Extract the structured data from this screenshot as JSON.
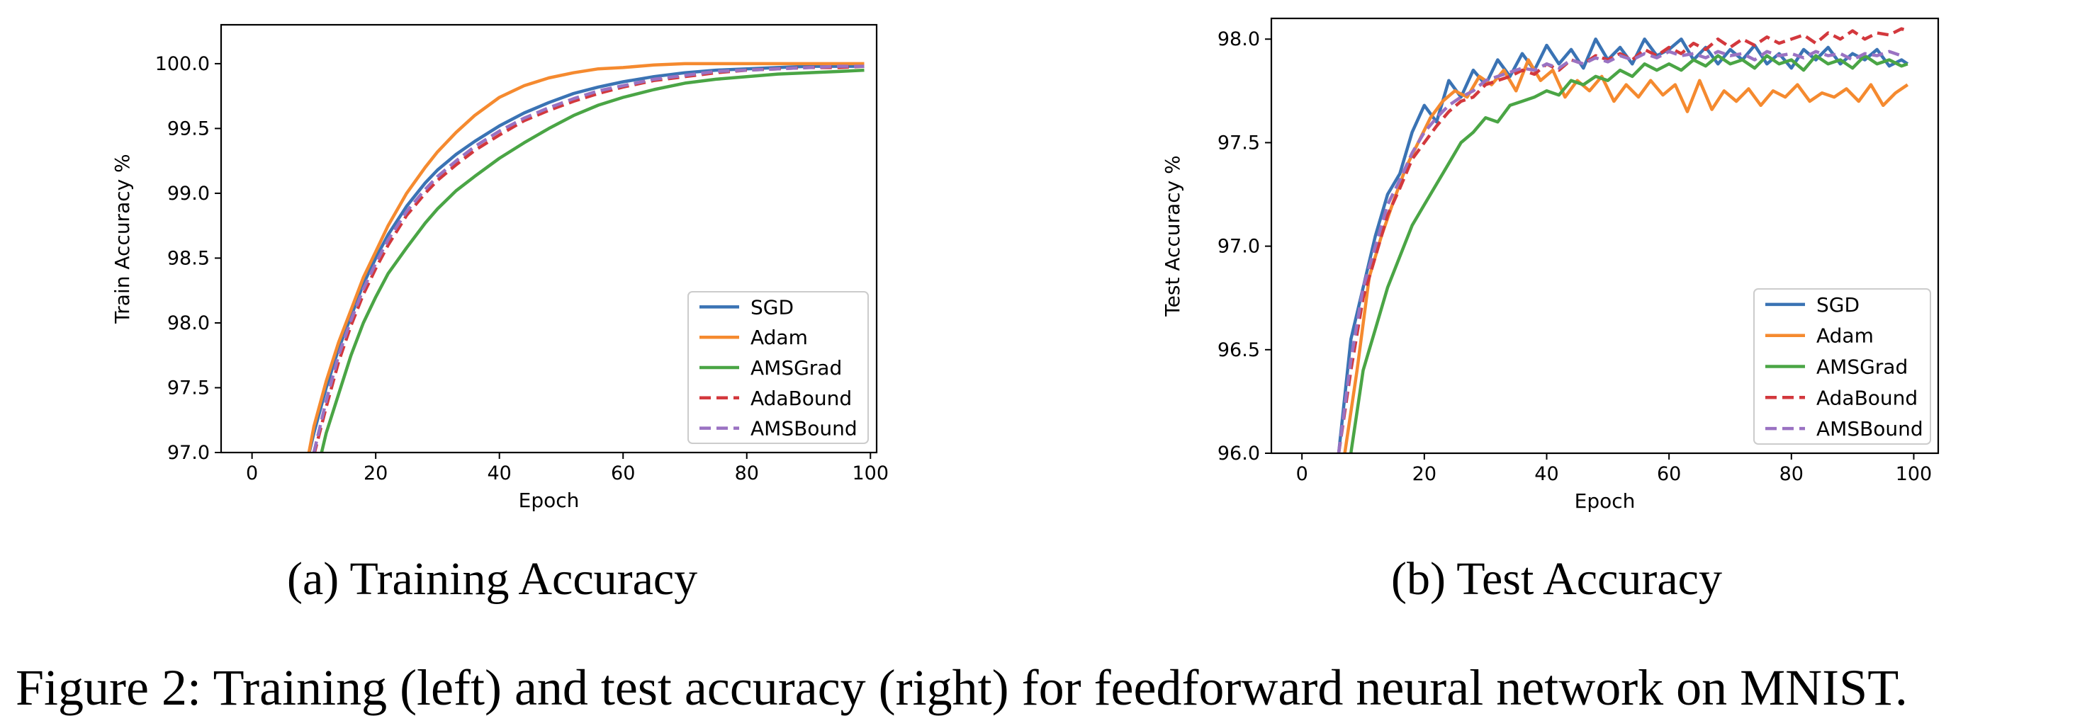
{
  "figure_caption": "Figure 2: Training (left) and test accuracy (right) for feedforward neural network on MNIST.",
  "colors": {
    "SGD": "#3a73b4",
    "Adam": "#f58a2f",
    "AMSGrad": "#4aa545",
    "AdaBound": "#d3383d",
    "AMSBound": "#9a72c2"
  },
  "chart_data": [
    {
      "type": "line",
      "caption": "(a) Training Accuracy",
      "xlabel": "Epoch",
      "ylabel": "Train Accuracy %",
      "xlim": [
        -5,
        101
      ],
      "ylim": [
        97.0,
        100.3
      ],
      "xticks": [
        0,
        20,
        40,
        60,
        80,
        100
      ],
      "yticks": [
        "97.0",
        "97.5",
        "98.0",
        "98.5",
        "99.0",
        "99.5",
        "100.0"
      ],
      "grid": false,
      "legend_position": "lower right",
      "series": [
        {
          "name": "SGD",
          "style": "solid",
          "x": [
            9,
            10,
            12,
            14,
            16,
            18,
            20,
            22,
            25,
            28,
            30,
            33,
            36,
            40,
            44,
            48,
            52,
            56,
            60,
            65,
            70,
            75,
            80,
            85,
            90,
            95,
            99
          ],
          "y": [
            96.95,
            97.15,
            97.5,
            97.8,
            98.05,
            98.3,
            98.5,
            98.68,
            98.9,
            99.08,
            99.18,
            99.3,
            99.4,
            99.52,
            99.62,
            99.7,
            99.77,
            99.82,
            99.86,
            99.9,
            99.93,
            99.95,
            99.96,
            99.97,
            99.98,
            99.98,
            99.98
          ]
        },
        {
          "name": "Adam",
          "style": "solid",
          "x": [
            9,
            10,
            12,
            14,
            16,
            18,
            20,
            22,
            25,
            28,
            30,
            33,
            36,
            40,
            44,
            48,
            52,
            56,
            60,
            65,
            70,
            75,
            80,
            85,
            90,
            95,
            99
          ],
          "y": [
            96.95,
            97.2,
            97.55,
            97.85,
            98.1,
            98.35,
            98.55,
            98.75,
            99.0,
            99.2,
            99.32,
            99.47,
            99.6,
            99.74,
            99.83,
            99.89,
            99.93,
            99.96,
            99.97,
            99.99,
            100.0,
            100.0,
            100.0,
            100.0,
            100.0,
            100.0,
            100.0
          ]
        },
        {
          "name": "AMSGrad",
          "style": "solid",
          "x": [
            11,
            12,
            14,
            16,
            18,
            20,
            22,
            25,
            28,
            30,
            33,
            36,
            40,
            44,
            48,
            52,
            56,
            60,
            65,
            70,
            75,
            80,
            85,
            90,
            95,
            99
          ],
          "y": [
            96.95,
            97.15,
            97.45,
            97.75,
            98.0,
            98.2,
            98.38,
            98.58,
            98.77,
            98.88,
            99.02,
            99.13,
            99.27,
            99.39,
            99.5,
            99.6,
            99.68,
            99.74,
            99.8,
            99.85,
            99.88,
            99.9,
            99.92,
            99.93,
            99.94,
            99.95
          ]
        },
        {
          "name": "AdaBound",
          "style": "dashed",
          "x": [
            10,
            12,
            14,
            16,
            18,
            20,
            22,
            25,
            28,
            30,
            33,
            36,
            40,
            44,
            48,
            52,
            56,
            60,
            65,
            70,
            75,
            80,
            85,
            90,
            95,
            99
          ],
          "y": [
            96.98,
            97.35,
            97.7,
            97.98,
            98.22,
            98.42,
            98.6,
            98.83,
            99.0,
            99.1,
            99.22,
            99.33,
            99.45,
            99.56,
            99.64,
            99.71,
            99.77,
            99.82,
            99.87,
            99.9,
            99.93,
            99.95,
            99.96,
            99.97,
            99.97,
            99.98
          ]
        },
        {
          "name": "AMSBound",
          "style": "dashed",
          "x": [
            10,
            12,
            14,
            16,
            18,
            20,
            22,
            25,
            28,
            30,
            33,
            36,
            40,
            44,
            48,
            52,
            56,
            60,
            65,
            70,
            75,
            80,
            85,
            90,
            95,
            99
          ],
          "y": [
            97.0,
            97.4,
            97.75,
            98.02,
            98.26,
            98.46,
            98.64,
            98.86,
            99.03,
            99.13,
            99.25,
            99.36,
            99.48,
            99.58,
            99.66,
            99.73,
            99.79,
            99.83,
            99.88,
            99.91,
            99.94,
            99.95,
            99.96,
            99.97,
            99.98,
            99.98
          ]
        }
      ]
    },
    {
      "type": "line",
      "caption": "(b) Test Accuracy",
      "xlabel": "Epoch",
      "ylabel": "Test Accuracy %",
      "xlim": [
        -5,
        104
      ],
      "ylim": [
        96.0,
        98.1
      ],
      "xticks": [
        0,
        20,
        40,
        60,
        80,
        100
      ],
      "yticks": [
        "96.0",
        "96.5",
        "97.0",
        "97.5",
        "98.0"
      ],
      "grid": false,
      "legend_position": "lower right",
      "series": [
        {
          "name": "SGD",
          "style": "solid",
          "x": [
            6,
            8,
            10,
            12,
            14,
            16,
            18,
            20,
            22,
            24,
            26,
            28,
            30,
            32,
            34,
            36,
            38,
            40,
            42,
            44,
            46,
            48,
            50,
            52,
            54,
            56,
            58,
            60,
            62,
            64,
            66,
            68,
            70,
            72,
            74,
            76,
            78,
            80,
            82,
            84,
            86,
            88,
            90,
            92,
            94,
            96,
            98,
            99
          ],
          "y": [
            96.0,
            96.55,
            96.8,
            97.05,
            97.25,
            97.35,
            97.55,
            97.68,
            97.6,
            97.8,
            97.72,
            97.85,
            97.78,
            97.9,
            97.82,
            97.93,
            97.85,
            97.97,
            97.88,
            97.95,
            97.86,
            98.0,
            97.9,
            97.96,
            97.88,
            98.0,
            97.92,
            97.95,
            98.0,
            97.9,
            97.96,
            97.88,
            97.95,
            97.9,
            97.97,
            97.88,
            97.93,
            97.86,
            97.95,
            97.9,
            97.96,
            97.88,
            97.93,
            97.9,
            97.95,
            97.87,
            97.9,
            97.88
          ]
        },
        {
          "name": "Adam",
          "style": "solid",
          "x": [
            7,
            9,
            11,
            13,
            15,
            17,
            19,
            21,
            23,
            25,
            27,
            29,
            31,
            33,
            35,
            37,
            39,
            41,
            43,
            45,
            47,
            49,
            51,
            53,
            55,
            57,
            59,
            61,
            63,
            65,
            67,
            69,
            71,
            73,
            75,
            77,
            79,
            81,
            83,
            85,
            87,
            89,
            91,
            93,
            95,
            97,
            99
          ],
          "y": [
            96.0,
            96.4,
            96.85,
            97.05,
            97.22,
            97.38,
            97.5,
            97.62,
            97.7,
            97.75,
            97.72,
            97.82,
            97.78,
            97.85,
            97.75,
            97.9,
            97.8,
            97.85,
            97.72,
            97.8,
            97.75,
            97.82,
            97.7,
            97.78,
            97.72,
            97.8,
            97.73,
            97.78,
            97.65,
            97.8,
            97.66,
            97.75,
            97.7,
            97.76,
            97.68,
            97.75,
            97.72,
            97.78,
            97.7,
            97.74,
            97.72,
            97.76,
            97.7,
            97.78,
            97.68,
            97.74,
            97.78
          ]
        },
        {
          "name": "AMSGrad",
          "style": "solid",
          "x": [
            8,
            9,
            10,
            12,
            14,
            16,
            18,
            20,
            22,
            24,
            26,
            28,
            30,
            32,
            34,
            36,
            38,
            40,
            42,
            44,
            46,
            48,
            50,
            52,
            54,
            56,
            58,
            60,
            62,
            64,
            66,
            68,
            70,
            72,
            74,
            76,
            78,
            80,
            82,
            84,
            86,
            88,
            90,
            92,
            94,
            96,
            98,
            99
          ],
          "y": [
            96.0,
            96.2,
            96.4,
            96.6,
            96.8,
            96.95,
            97.1,
            97.2,
            97.3,
            97.4,
            97.5,
            97.55,
            97.62,
            97.6,
            97.68,
            97.7,
            97.72,
            97.75,
            97.73,
            97.8,
            97.78,
            97.82,
            97.8,
            97.85,
            97.82,
            97.88,
            97.85,
            97.88,
            97.85,
            97.9,
            97.87,
            97.92,
            97.88,
            97.9,
            97.86,
            97.92,
            97.88,
            97.9,
            97.85,
            97.92,
            97.88,
            97.9,
            97.86,
            97.92,
            97.88,
            97.9,
            97.87,
            97.88
          ]
        },
        {
          "name": "AdaBound",
          "style": "dashed",
          "x": [
            6,
            8,
            10,
            12,
            14,
            16,
            18,
            20,
            22,
            24,
            26,
            28,
            30,
            32,
            34,
            36,
            38,
            40,
            42,
            44,
            46,
            48,
            50,
            52,
            54,
            56,
            58,
            60,
            62,
            64,
            66,
            68,
            70,
            72,
            74,
            76,
            78,
            80,
            82,
            84,
            86,
            88,
            90,
            92,
            94,
            96,
            98,
            99
          ],
          "y": [
            96.0,
            96.4,
            96.75,
            96.95,
            97.15,
            97.28,
            97.42,
            97.5,
            97.58,
            97.65,
            97.7,
            97.72,
            97.78,
            97.8,
            97.82,
            97.85,
            97.83,
            97.88,
            97.85,
            97.9,
            97.88,
            97.92,
            97.9,
            97.93,
            97.9,
            97.95,
            97.92,
            97.96,
            97.93,
            97.98,
            97.95,
            98.0,
            97.96,
            98.0,
            97.97,
            98.01,
            97.98,
            98.0,
            98.02,
            97.98,
            98.03,
            98.0,
            98.04,
            98.0,
            98.03,
            98.02,
            98.05,
            98.04
          ]
        },
        {
          "name": "AMSBound",
          "style": "dashed",
          "x": [
            6,
            8,
            10,
            12,
            14,
            16,
            18,
            20,
            22,
            24,
            26,
            28,
            30,
            32,
            34,
            36,
            38,
            40,
            42,
            44,
            46,
            48,
            50,
            52,
            54,
            56,
            58,
            60,
            62,
            64,
            66,
            68,
            70,
            72,
            74,
            76,
            78,
            80,
            82,
            84,
            86,
            88,
            90,
            92,
            94,
            96,
            98
          ],
          "y": [
            96.0,
            96.45,
            96.8,
            97.0,
            97.2,
            97.32,
            97.45,
            97.55,
            97.62,
            97.68,
            97.72,
            97.75,
            97.8,
            97.82,
            97.84,
            97.86,
            97.85,
            97.88,
            97.86,
            97.9,
            97.88,
            97.91,
            97.89,
            97.92,
            97.9,
            97.93,
            97.91,
            97.94,
            97.92,
            97.93,
            97.91,
            97.94,
            97.92,
            97.93,
            97.9,
            97.94,
            97.92,
            97.93,
            97.91,
            97.94,
            97.92,
            97.93,
            97.9,
            97.93,
            97.92,
            97.94,
            97.92
          ]
        }
      ]
    }
  ]
}
